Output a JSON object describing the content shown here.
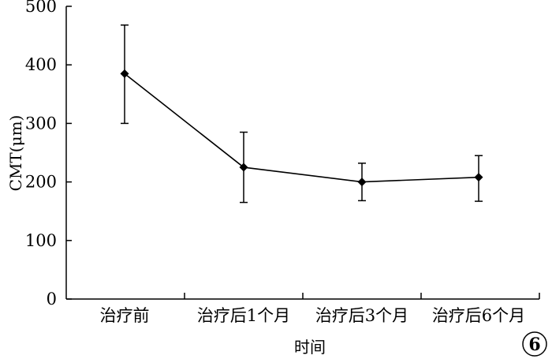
{
  "chart_data": {
    "type": "line",
    "title": "",
    "xlabel": "时间",
    "ylabel": "CMT(μm)",
    "categories": [
      "治疗前",
      "治疗后1个月",
      "治疗后3个月",
      "治疗后6个月"
    ],
    "series": [
      {
        "values": [
          385,
          225,
          200,
          208
        ],
        "error_high": [
          468,
          285,
          232,
          245
        ],
        "error_low": [
          300,
          165,
          168,
          167
        ],
        "marker": "diamond",
        "color": "#000000"
      }
    ],
    "ylim": [
      0,
      500
    ],
    "yticks": [
      "0",
      "100",
      "200",
      "300",
      "400",
      "500"
    ],
    "grid": false,
    "legend": "none"
  },
  "badge": {
    "text": "6"
  }
}
